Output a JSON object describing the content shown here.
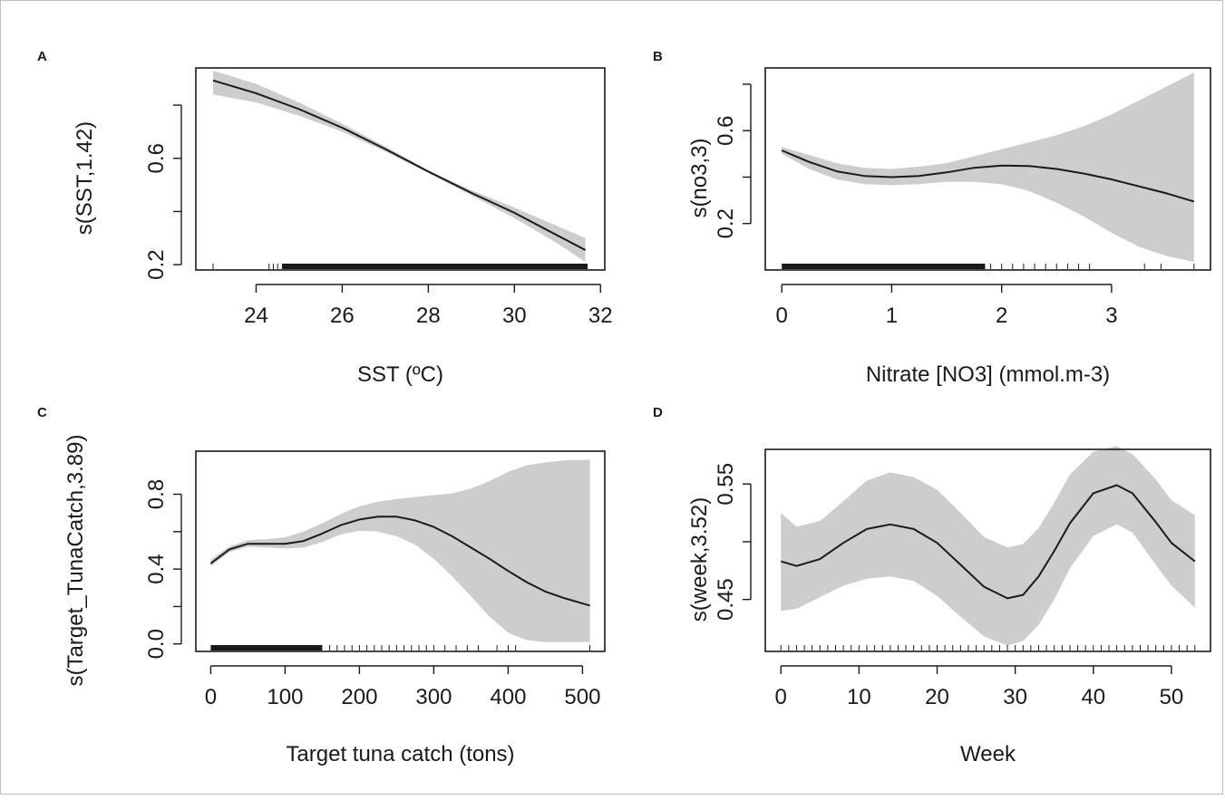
{
  "chart_data": [
    {
      "panel": "A",
      "type": "line",
      "xlabel": "SST (ºC)",
      "ylabel": "s(SST,1.42)",
      "xlim": [
        22.6,
        32.1
      ],
      "ylim": [
        0.18,
        0.94
      ],
      "xticks": [
        24,
        26,
        28,
        30,
        32
      ],
      "xtick_labels": [
        "24",
        "26",
        "28",
        "30",
        "32"
      ],
      "yticks": [
        0.2,
        0.4,
        0.6,
        0.8
      ],
      "ytick_labels": [
        "0.2",
        "",
        "0.6",
        ""
      ],
      "series": [
        {
          "x": [
            23.0,
            24.0,
            25.0,
            26.0,
            27.0,
            28.0,
            29.0,
            30.0,
            31.0,
            31.65
          ],
          "fit": [
            0.893,
            0.845,
            0.785,
            0.715,
            0.635,
            0.55,
            0.47,
            0.395,
            0.31,
            0.255
          ],
          "lower": [
            0.84,
            0.81,
            0.76,
            0.7,
            0.625,
            0.545,
            0.46,
            0.375,
            0.28,
            0.21
          ],
          "upper": [
            0.93,
            0.88,
            0.81,
            0.73,
            0.645,
            0.555,
            0.48,
            0.415,
            0.345,
            0.3
          ]
        }
      ],
      "rug": {
        "ranges": [
          [
            24.6,
            31.7
          ]
        ],
        "sparse": [
          23.0,
          24.3,
          24.4,
          24.5
        ]
      }
    },
    {
      "panel": "B",
      "type": "line",
      "xlabel": "Nitrate [NO3] (mmol.m-3)",
      "ylabel": "s(no3,3)",
      "xlim": [
        -0.15,
        3.9
      ],
      "ylim": [
        0.0,
        0.87
      ],
      "xticks": [
        0,
        1,
        2,
        3
      ],
      "xtick_labels": [
        "0",
        "1",
        "2",
        "3"
      ],
      "yticks": [
        0.2,
        0.4,
        0.6,
        0.8
      ],
      "ytick_labels": [
        "0.2",
        "",
        "0.6",
        ""
      ],
      "series": [
        {
          "x": [
            0.0,
            0.25,
            0.5,
            0.75,
            1.0,
            1.25,
            1.5,
            1.75,
            2.0,
            2.25,
            2.5,
            2.75,
            3.0,
            3.25,
            3.5,
            3.75
          ],
          "fit": [
            0.515,
            0.465,
            0.425,
            0.405,
            0.4,
            0.405,
            0.42,
            0.44,
            0.45,
            0.448,
            0.435,
            0.415,
            0.39,
            0.36,
            0.33,
            0.295
          ],
          "lower": [
            0.5,
            0.435,
            0.39,
            0.37,
            0.365,
            0.37,
            0.38,
            0.38,
            0.37,
            0.34,
            0.29,
            0.23,
            0.16,
            0.1,
            0.06,
            0.035
          ],
          "upper": [
            0.53,
            0.495,
            0.46,
            0.44,
            0.435,
            0.445,
            0.46,
            0.49,
            0.52,
            0.55,
            0.58,
            0.62,
            0.67,
            0.73,
            0.79,
            0.85
          ]
        }
      ],
      "rug": {
        "ranges": [
          [
            0.0,
            1.85
          ]
        ],
        "sparse": [
          1.9,
          2.0,
          2.1,
          2.2,
          2.3,
          2.4,
          2.5,
          2.6,
          2.7,
          2.8,
          3.3,
          3.45,
          3.75
        ]
      }
    },
    {
      "panel": "C",
      "type": "line",
      "xlabel": "Target tuna catch (tons)",
      "ylabel": "s(Target_TunaCatch,3.89)",
      "xlim": [
        -20,
        530
      ],
      "ylim": [
        -0.04,
        1.03
      ],
      "xticks": [
        0,
        100,
        200,
        300,
        400,
        500
      ],
      "xtick_labels": [
        "0",
        "100",
        "200",
        "300",
        "400",
        "500"
      ],
      "yticks": [
        0.0,
        0.2,
        0.4,
        0.6,
        0.8
      ],
      "ytick_labels": [
        "0.0",
        "",
        "0.4",
        "",
        "0.8"
      ],
      "series": [
        {
          "x": [
            0,
            25,
            50,
            75,
            100,
            125,
            150,
            175,
            200,
            225,
            250,
            275,
            300,
            325,
            350,
            375,
            400,
            425,
            450,
            475,
            510
          ],
          "fit": [
            0.43,
            0.505,
            0.535,
            0.535,
            0.535,
            0.55,
            0.59,
            0.635,
            0.665,
            0.68,
            0.68,
            0.66,
            0.625,
            0.575,
            0.515,
            0.455,
            0.39,
            0.33,
            0.28,
            0.245,
            0.205
          ],
          "lower": [
            0.415,
            0.49,
            0.52,
            0.515,
            0.51,
            0.515,
            0.545,
            0.585,
            0.605,
            0.6,
            0.575,
            0.53,
            0.455,
            0.36,
            0.255,
            0.145,
            0.06,
            0.02,
            0.01,
            0.01,
            0.01
          ],
          "upper": [
            0.45,
            0.52,
            0.555,
            0.56,
            0.57,
            0.6,
            0.645,
            0.695,
            0.735,
            0.76,
            0.775,
            0.785,
            0.795,
            0.805,
            0.83,
            0.87,
            0.92,
            0.955,
            0.97,
            0.98,
            0.985
          ]
        }
      ],
      "rug": {
        "ranges": [
          [
            0,
            150
          ]
        ],
        "sparse": [
          160,
          170,
          180,
          190,
          200,
          210,
          220,
          230,
          240,
          250,
          260,
          270,
          280,
          290,
          300,
          315,
          330,
          345,
          360,
          385,
          400,
          410,
          510
        ]
      }
    },
    {
      "panel": "D",
      "type": "line",
      "xlabel": "Week",
      "ylabel": "s(week,3.52)",
      "xlim": [
        -2,
        55
      ],
      "ylim": [
        0.405,
        0.58
      ],
      "xticks": [
        0,
        10,
        20,
        30,
        40,
        50
      ],
      "xtick_labels": [
        "0",
        "10",
        "20",
        "30",
        "40",
        "50"
      ],
      "yticks": [
        0.45,
        0.5,
        0.55
      ],
      "ytick_labels": [
        "0.45",
        "",
        "0.55"
      ],
      "series": [
        {
          "x": [
            0,
            2,
            5,
            8,
            11,
            14,
            17,
            20,
            23,
            26,
            29,
            31,
            33,
            35,
            37,
            40,
            43,
            45,
            48,
            50,
            53
          ],
          "fit": [
            0.483,
            0.479,
            0.485,
            0.499,
            0.511,
            0.515,
            0.511,
            0.499,
            0.48,
            0.461,
            0.451,
            0.454,
            0.47,
            0.492,
            0.516,
            0.542,
            0.549,
            0.542,
            0.517,
            0.499,
            0.483
          ],
          "lower": [
            0.44,
            0.442,
            0.452,
            0.462,
            0.468,
            0.47,
            0.466,
            0.453,
            0.435,
            0.418,
            0.41,
            0.414,
            0.428,
            0.45,
            0.477,
            0.505,
            0.515,
            0.508,
            0.48,
            0.462,
            0.443
          ],
          "upper": [
            0.525,
            0.513,
            0.518,
            0.535,
            0.553,
            0.56,
            0.556,
            0.545,
            0.525,
            0.504,
            0.495,
            0.498,
            0.512,
            0.534,
            0.558,
            0.578,
            0.583,
            0.576,
            0.554,
            0.536,
            0.523
          ]
        }
      ],
      "rug": {
        "ranges": [],
        "sparse": [
          0,
          1,
          2,
          3,
          4,
          5,
          6,
          7,
          8,
          9,
          10,
          11,
          12,
          13,
          14,
          15,
          16,
          17,
          18,
          19,
          20,
          21,
          22,
          23,
          24,
          25,
          26,
          27,
          28,
          29,
          30,
          31,
          32,
          33,
          34,
          35,
          36,
          37,
          38,
          39,
          40,
          41,
          42,
          43,
          44,
          45,
          46,
          47,
          48,
          49,
          50,
          51,
          52,
          53
        ]
      }
    }
  ],
  "style": {
    "band_color": "#cdcdcd",
    "line_color": "#1a1a1a"
  }
}
